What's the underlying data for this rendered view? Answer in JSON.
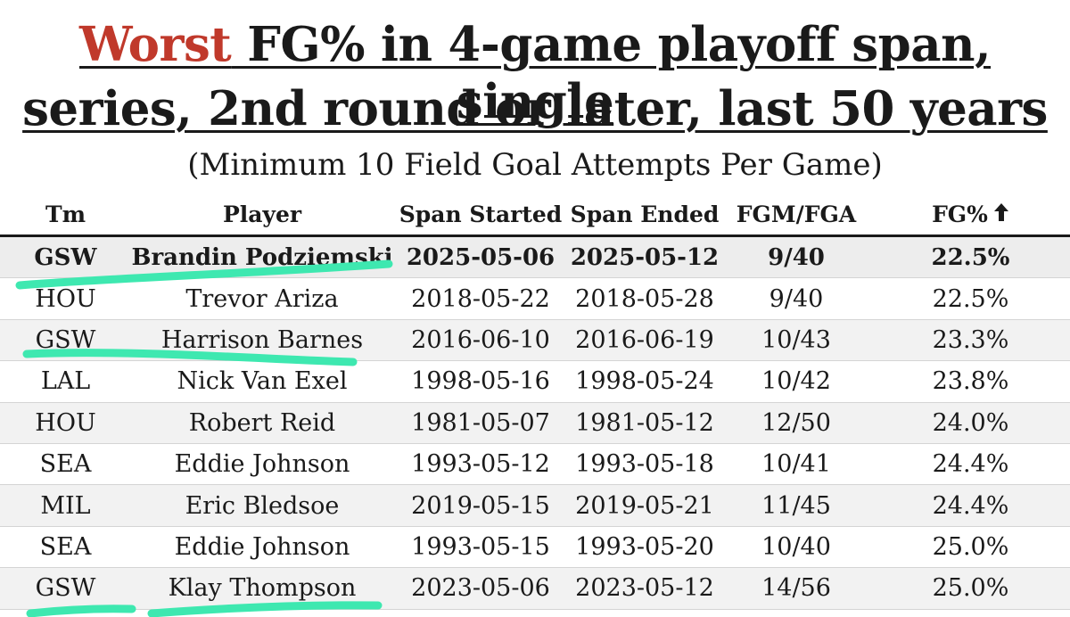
{
  "title": {
    "highlight": "Worst",
    "line1_rest": " FG% in 4-game playoff span, single",
    "line2": "series, 2nd round or later, last 50 years",
    "highlight_color": "#c0392b"
  },
  "subtitle": "(Minimum 10 Field Goal Attempts Per Game)",
  "table": {
    "headers": {
      "tm": "Tm",
      "player": "Player",
      "span_started": "Span Started",
      "span_ended": "Span Ended",
      "fgm_fga": "FGM/FGA",
      "fg_pct": "FG%",
      "sort_icon": "arrow-up-icon"
    },
    "rows": [
      {
        "tm": "GSW",
        "player": "Brandin Podziemski",
        "start": "2025-05-06",
        "end": "2025-05-12",
        "fgm_fga": "9/40",
        "fg_pct": "22.5%"
      },
      {
        "tm": "HOU",
        "player": "Trevor Ariza",
        "start": "2018-05-22",
        "end": "2018-05-28",
        "fgm_fga": "9/40",
        "fg_pct": "22.5%"
      },
      {
        "tm": "GSW",
        "player": "Harrison Barnes",
        "start": "2016-06-10",
        "end": "2016-06-19",
        "fgm_fga": "10/43",
        "fg_pct": "23.3%"
      },
      {
        "tm": "LAL",
        "player": "Nick Van Exel",
        "start": "1998-05-16",
        "end": "1998-05-24",
        "fgm_fga": "10/42",
        "fg_pct": "23.8%"
      },
      {
        "tm": "HOU",
        "player": "Robert Reid",
        "start": "1981-05-07",
        "end": "1981-05-12",
        "fgm_fga": "12/50",
        "fg_pct": "24.0%"
      },
      {
        "tm": "SEA",
        "player": "Eddie Johnson",
        "start": "1993-05-12",
        "end": "1993-05-18",
        "fgm_fga": "10/41",
        "fg_pct": "24.4%"
      },
      {
        "tm": "MIL",
        "player": "Eric Bledsoe",
        "start": "2019-05-15",
        "end": "2019-05-21",
        "fgm_fga": "11/45",
        "fg_pct": "24.4%"
      },
      {
        "tm": "SEA",
        "player": "Eddie Johnson",
        "start": "1993-05-15",
        "end": "1993-05-20",
        "fgm_fga": "10/40",
        "fg_pct": "25.0%"
      },
      {
        "tm": "GSW",
        "player": "Klay Thompson",
        "start": "2023-05-06",
        "end": "2023-05-12",
        "fgm_fga": "14/56",
        "fg_pct": "25.0%"
      }
    ]
  },
  "annotation_color": "#3ee8b0"
}
